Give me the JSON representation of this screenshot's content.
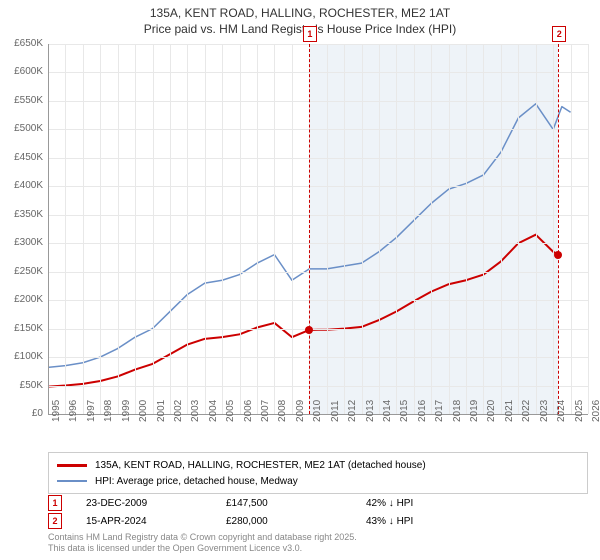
{
  "title_line1": "135A, KENT ROAD, HALLING, ROCHESTER, ME2 1AT",
  "title_line2": "Price paid vs. HM Land Registry's House Price Index (HPI)",
  "chart": {
    "type": "line",
    "background_color": "#ffffff",
    "grid_color": "#e8e8e8",
    "shade_color": "#eef3f8",
    "x_years": [
      1995,
      1996,
      1997,
      1998,
      1999,
      2000,
      2001,
      2002,
      2003,
      2004,
      2005,
      2006,
      2007,
      2008,
      2009,
      2010,
      2011,
      2012,
      2013,
      2014,
      2015,
      2016,
      2017,
      2018,
      2019,
      2020,
      2021,
      2022,
      2023,
      2024,
      2025,
      2026
    ],
    "y_ticks": [
      0,
      50,
      100,
      150,
      200,
      250,
      300,
      350,
      400,
      450,
      500,
      550,
      600,
      650
    ],
    "y_tick_labels": [
      "£0",
      "£50K",
      "£100K",
      "£150K",
      "£200K",
      "£250K",
      "£300K",
      "£350K",
      "£400K",
      "£450K",
      "£500K",
      "£550K",
      "£600K",
      "£650K"
    ],
    "y_max": 650,
    "x_min": 1995,
    "x_max": 2026,
    "label_fontsize": 10,
    "series": [
      {
        "name": "HPI: Average price, detached house, Medway",
        "color": "#6a8fc7",
        "width": 1.5,
        "points": [
          [
            1995,
            82
          ],
          [
            1996,
            85
          ],
          [
            1997,
            90
          ],
          [
            1998,
            100
          ],
          [
            1999,
            115
          ],
          [
            2000,
            135
          ],
          [
            2001,
            150
          ],
          [
            2002,
            180
          ],
          [
            2003,
            210
          ],
          [
            2004,
            230
          ],
          [
            2005,
            235
          ],
          [
            2006,
            245
          ],
          [
            2007,
            265
          ],
          [
            2008,
            280
          ],
          [
            2009,
            235
          ],
          [
            2010,
            255
          ],
          [
            2011,
            255
          ],
          [
            2012,
            260
          ],
          [
            2013,
            265
          ],
          [
            2014,
            285
          ],
          [
            2015,
            310
          ],
          [
            2016,
            340
          ],
          [
            2017,
            370
          ],
          [
            2018,
            395
          ],
          [
            2019,
            405
          ],
          [
            2020,
            420
          ],
          [
            2021,
            460
          ],
          [
            2022,
            520
          ],
          [
            2023,
            545
          ],
          [
            2024,
            500
          ],
          [
            2024.5,
            540
          ],
          [
            2025,
            530
          ]
        ]
      },
      {
        "name": "135A, KENT ROAD, HALLING, ROCHESTER, ME2 1AT (detached house)",
        "color": "#cc0000",
        "width": 2,
        "points": [
          [
            1995,
            48
          ],
          [
            1996,
            50
          ],
          [
            1997,
            53
          ],
          [
            1998,
            58
          ],
          [
            1999,
            66
          ],
          [
            2000,
            78
          ],
          [
            2001,
            88
          ],
          [
            2002,
            105
          ],
          [
            2003,
            122
          ],
          [
            2004,
            132
          ],
          [
            2005,
            135
          ],
          [
            2006,
            140
          ],
          [
            2007,
            152
          ],
          [
            2008,
            160
          ],
          [
            2009,
            135
          ],
          [
            2009.98,
            147.5
          ],
          [
            2010.5,
            148
          ],
          [
            2011,
            148
          ],
          [
            2012,
            150
          ],
          [
            2013,
            153
          ],
          [
            2014,
            165
          ],
          [
            2015,
            180
          ],
          [
            2016,
            198
          ],
          [
            2017,
            215
          ],
          [
            2018,
            228
          ],
          [
            2019,
            235
          ],
          [
            2020,
            245
          ],
          [
            2021,
            268
          ],
          [
            2022,
            300
          ],
          [
            2023,
            315
          ],
          [
            2024,
            285
          ],
          [
            2024.29,
            280
          ]
        ]
      }
    ],
    "sales_markers": [
      {
        "n": "1",
        "year": 2009.98,
        "price": 147.5,
        "box_color": "#cc0000",
        "dot_color": "#cc0000"
      },
      {
        "n": "2",
        "year": 2024.29,
        "price": 280,
        "box_color": "#cc0000",
        "dot_color": "#cc0000"
      }
    ],
    "shaded_regions": [
      {
        "from": 2009.98,
        "to": 2024.29
      }
    ]
  },
  "legend": {
    "items": [
      {
        "color": "#cc0000",
        "width": 3,
        "label": "135A, KENT ROAD, HALLING, ROCHESTER, ME2 1AT (detached house)"
      },
      {
        "color": "#6a8fc7",
        "width": 1.5,
        "label": "HPI: Average price, detached house, Medway"
      }
    ]
  },
  "sales_table": [
    {
      "n": "1",
      "box_color": "#cc0000",
      "date": "23-DEC-2009",
      "price": "£147,500",
      "delta": "42% ↓ HPI"
    },
    {
      "n": "2",
      "box_color": "#cc0000",
      "date": "15-APR-2024",
      "price": "£280,000",
      "delta": "43% ↓ HPI"
    }
  ],
  "footer_line1": "Contains HM Land Registry data © Crown copyright and database right 2025.",
  "footer_line2": "This data is licensed under the Open Government Licence v3.0."
}
